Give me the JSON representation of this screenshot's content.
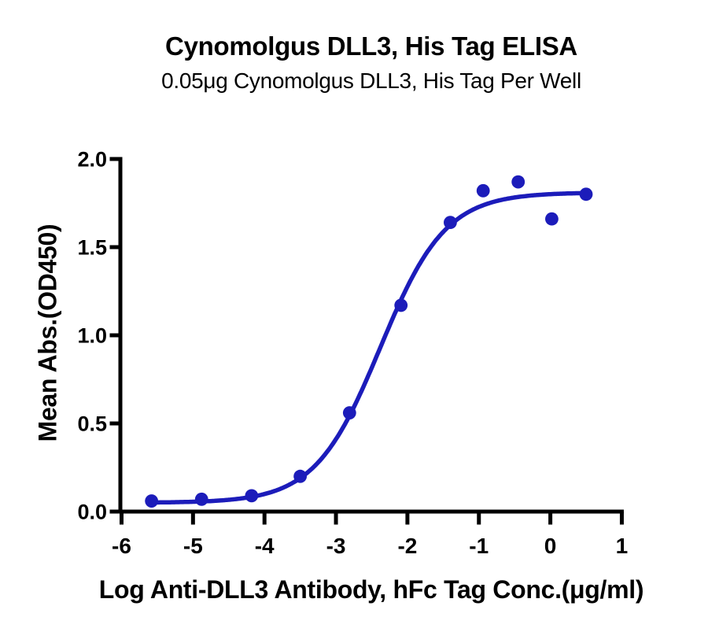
{
  "chart_data": {
    "type": "scatter",
    "title": "Cynomolgus DLL3, His Tag ELISA",
    "subtitle": "0.05μg Cynomolgus DLL3, His Tag Per Well",
    "xlabel": "Log Anti-DLL3 Antibody, hFc Tag Conc.(μg/ml)",
    "ylabel": "Mean Abs.(OD450)",
    "xlim": [
      -6,
      1
    ],
    "ylim": [
      0,
      2
    ],
    "xticks": [
      -6,
      -5,
      -4,
      -3,
      -2,
      -1,
      0,
      1
    ],
    "xtick_labels": [
      "-6",
      "-5",
      "-4",
      "-3",
      "-2",
      "-1",
      "0",
      "1"
    ],
    "yticks": [
      0,
      0.5,
      1,
      1.5,
      2
    ],
    "ytick_labels": [
      "0.0",
      "0.5",
      "1.0",
      "1.5",
      "2.0"
    ],
    "grid": false,
    "legend": false,
    "series": [
      {
        "marker": "circle",
        "color": "#1c1cba",
        "points": [
          {
            "x": -5.58,
            "y": 0.06
          },
          {
            "x": -4.88,
            "y": 0.07
          },
          {
            "x": -4.18,
            "y": 0.09
          },
          {
            "x": -3.5,
            "y": 0.2
          },
          {
            "x": -2.81,
            "y": 0.56
          },
          {
            "x": -2.09,
            "y": 1.17
          },
          {
            "x": -1.4,
            "y": 1.64
          },
          {
            "x": -0.94,
            "y": 1.82
          },
          {
            "x": -0.45,
            "y": 1.87
          },
          {
            "x": 0.02,
            "y": 1.66
          },
          {
            "x": 0.5,
            "y": 1.8
          }
        ],
        "fit_curve": {
          "model": "4PL",
          "bottom": 0.05,
          "top": 1.81,
          "log_ec50": -2.38,
          "hill_slope": 0.95,
          "x_start": -5.58,
          "x_end": 0.5
        }
      }
    ]
  },
  "colors": {
    "curve": "#1c1cba",
    "axis": "#000000",
    "text": "#000000",
    "background": "#ffffff"
  }
}
